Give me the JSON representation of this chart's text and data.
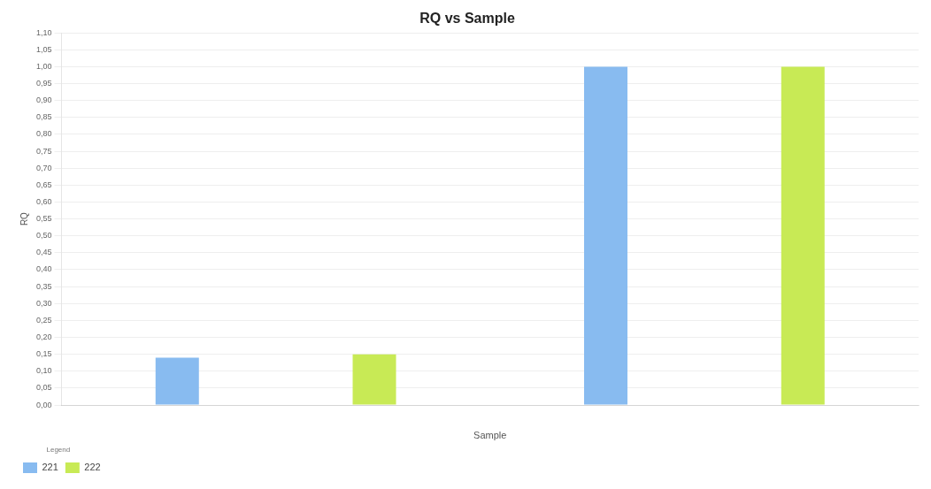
{
  "chart_data": {
    "type": "bar",
    "title": "RQ vs Sample",
    "xlabel": "Sample",
    "ylabel": "RQ",
    "legend_title": "Legend",
    "categories": [
      null,
      null
    ],
    "series": [
      {
        "name": "221",
        "color": "#88bbf0",
        "values": [
          0.14,
          1.0
        ]
      },
      {
        "name": "222",
        "color": "#c8ea55",
        "values": [
          0.15,
          1.0
        ]
      }
    ],
    "ylim": [
      0,
      1.1
    ],
    "yticks": [
      {
        "value": 0,
        "label": "0,00"
      },
      {
        "value": 0.05,
        "label": "0,05"
      },
      {
        "value": 0.1,
        "label": "0,10"
      },
      {
        "value": 0.15,
        "label": "0,15"
      },
      {
        "value": 0.2,
        "label": "0,20"
      },
      {
        "value": 0.25,
        "label": "0,25"
      },
      {
        "value": 0.3,
        "label": "0,30"
      },
      {
        "value": 0.35,
        "label": "0,35"
      },
      {
        "value": 0.4,
        "label": "0,40"
      },
      {
        "value": 0.45,
        "label": "0,45"
      },
      {
        "value": 0.5,
        "label": "0,50"
      },
      {
        "value": 0.55,
        "label": "0,55"
      },
      {
        "value": 0.6,
        "label": "0,60"
      },
      {
        "value": 0.65,
        "label": "0,65"
      },
      {
        "value": 0.7,
        "label": "0,70"
      },
      {
        "value": 0.75,
        "label": "0,75"
      },
      {
        "value": 0.8,
        "label": "0,80"
      },
      {
        "value": 0.85,
        "label": "0,85"
      },
      {
        "value": 0.9,
        "label": "0,90"
      },
      {
        "value": 0.95,
        "label": "0,95"
      },
      {
        "value": 1.0,
        "label": "1,00"
      },
      {
        "value": 1.05,
        "label": "1,05"
      },
      {
        "value": 1.1,
        "label": "1,10"
      }
    ],
    "grid": "y",
    "legend": "bottom left"
  }
}
